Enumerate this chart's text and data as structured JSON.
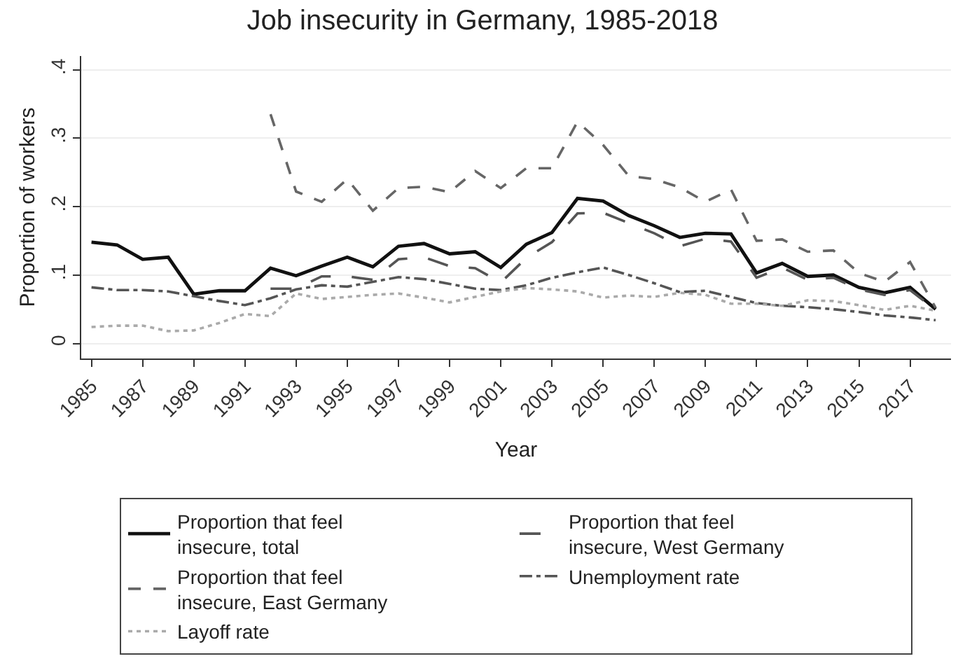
{
  "chart_data": {
    "type": "line",
    "title": "Job insecurity in Germany, 1985-2018",
    "xlabel": "Year",
    "ylabel": "Proportion of workers",
    "x": [
      1985,
      1986,
      1987,
      1988,
      1989,
      1990,
      1991,
      1992,
      1993,
      1994,
      1995,
      1996,
      1997,
      1998,
      1999,
      2000,
      2001,
      2002,
      2003,
      2004,
      2005,
      2006,
      2007,
      2008,
      2009,
      2010,
      2011,
      2012,
      2013,
      2014,
      2015,
      2016,
      2017,
      2018
    ],
    "series": [
      {
        "name": "Proportion that feel insecure, total",
        "color": "#111111",
        "line_style": "solid",
        "values": [
          0.148,
          0.144,
          0.123,
          0.126,
          0.072,
          0.077,
          0.077,
          0.11,
          0.099,
          0.113,
          0.126,
          0.112,
          0.142,
          0.146,
          0.131,
          0.134,
          0.111,
          0.145,
          0.162,
          0.212,
          0.208,
          0.187,
          0.172,
          0.155,
          0.161,
          0.16,
          0.103,
          0.117,
          0.098,
          0.1,
          0.082,
          0.074,
          0.082,
          0.05
        ]
      },
      {
        "name": "Proportion that feel insecure, West Germany",
        "color": "#555555",
        "line_style": "longdash",
        "values": [
          null,
          null,
          null,
          null,
          null,
          null,
          null,
          0.08,
          0.08,
          0.098,
          0.098,
          0.093,
          0.123,
          0.126,
          0.113,
          0.11,
          0.089,
          0.125,
          0.148,
          0.19,
          0.191,
          0.176,
          0.161,
          0.142,
          0.153,
          0.149,
          0.096,
          0.111,
          0.093,
          0.096,
          0.079,
          0.071,
          0.078,
          0.049
        ]
      },
      {
        "name": "Proportion that feel insecure, East Germany",
        "color": "#666666",
        "line_style": "dashed",
        "values": [
          null,
          null,
          null,
          null,
          null,
          null,
          null,
          0.335,
          0.222,
          0.207,
          0.24,
          0.194,
          0.227,
          0.229,
          0.221,
          0.252,
          0.227,
          0.256,
          0.256,
          0.324,
          0.29,
          0.245,
          0.24,
          0.228,
          0.207,
          0.225,
          0.15,
          0.152,
          0.134,
          0.136,
          0.103,
          0.09,
          0.119,
          0.052
        ]
      },
      {
        "name": "Unemployment rate",
        "color": "#555555",
        "line_style": "dashdot",
        "values": [
          0.082,
          0.078,
          0.078,
          0.076,
          0.069,
          0.062,
          0.056,
          0.066,
          0.079,
          0.085,
          0.083,
          0.09,
          0.097,
          0.094,
          0.087,
          0.08,
          0.078,
          0.085,
          0.096,
          0.104,
          0.111,
          0.1,
          0.088,
          0.075,
          0.077,
          0.068,
          0.059,
          0.055,
          0.053,
          0.05,
          0.046,
          0.041,
          0.038,
          0.034
        ]
      },
      {
        "name": "Layoff rate",
        "color": "#aaaaaa",
        "line_style": "dotted",
        "values": [
          0.024,
          0.026,
          0.026,
          0.018,
          0.019,
          0.03,
          0.043,
          0.04,
          0.073,
          0.065,
          0.068,
          0.071,
          0.073,
          0.067,
          0.06,
          0.068,
          0.076,
          0.081,
          0.079,
          0.076,
          0.067,
          0.07,
          0.068,
          0.074,
          0.071,
          0.058,
          0.058,
          0.055,
          0.063,
          0.062,
          0.056,
          0.049,
          0.055,
          0.048
        ]
      }
    ],
    "xlim": [
      1984.6,
      2018.6
    ],
    "xticks": [
      1985,
      1987,
      1989,
      1991,
      1993,
      1995,
      1997,
      1999,
      2001,
      2003,
      2005,
      2007,
      2009,
      2011,
      2013,
      2015,
      2017
    ],
    "ylim": [
      -0.022,
      0.42
    ],
    "yticks": [
      {
        "value": 0,
        "label": "0"
      },
      {
        "value": 0.1,
        "label": ".1"
      },
      {
        "value": 0.2,
        "label": ".2"
      },
      {
        "value": 0.3,
        "label": ".3"
      },
      {
        "value": 0.4,
        "label": ".4"
      }
    ],
    "grid": "y",
    "legend": "bottom"
  }
}
